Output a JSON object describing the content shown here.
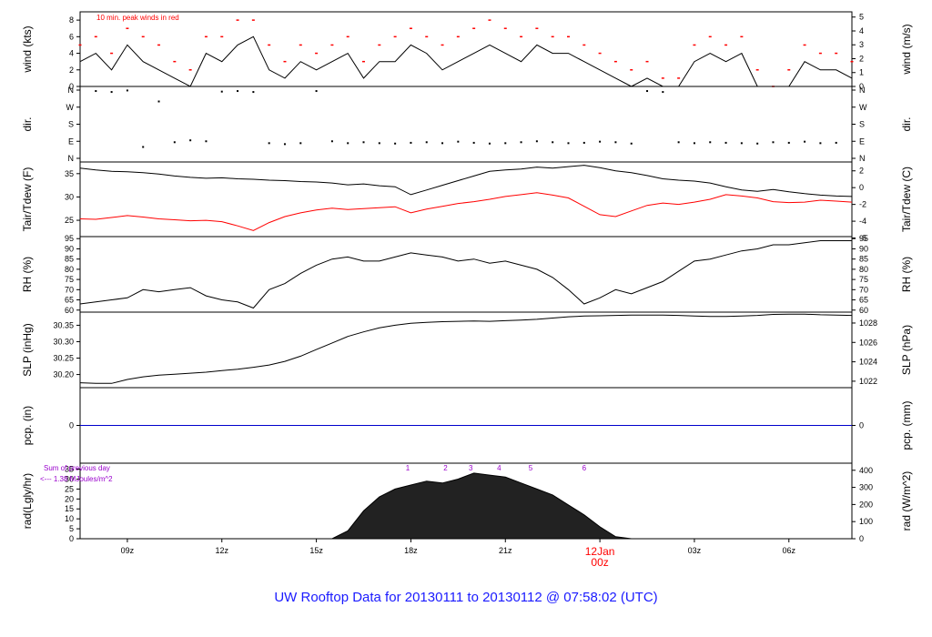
{
  "footer": {
    "title": "UW Rooftop Data for 20130111  to  20130112 @ 07:58:02  (UTC)"
  },
  "colors": {
    "axis": "#000000",
    "wind": "#000000",
    "peak": "#ff0000",
    "tair": "#000000",
    "tdew": "#ff0000",
    "precip": "#0000cc",
    "annotation": "#9900cc",
    "date_label": "#ff0000",
    "footer": "#1a1aff"
  },
  "chart_data": [
    {
      "type": "line",
      "id": "wind",
      "ylabel": "wind (kts)",
      "ylabel_right": "wind (m/s)",
      "ylim": [
        0,
        9
      ],
      "yticks": [
        0,
        2,
        4,
        6,
        8
      ],
      "ylim_right": [
        0,
        5
      ],
      "yticks_right": [
        0,
        1,
        2,
        3,
        4,
        5
      ],
      "annotation": "10 min. peak winds in red",
      "series": [
        {
          "name": "",
          "hours": [
            7.5,
            8,
            8.5,
            9,
            9.5,
            10,
            10.5,
            11,
            11.5,
            12,
            12.5,
            13,
            13.5,
            14,
            14.5,
            15,
            15.5,
            16,
            16.5,
            17,
            17.5,
            18,
            18.5,
            19,
            19.5,
            20,
            20.5,
            21,
            21.5,
            22,
            22.5,
            23,
            23.5,
            24,
            24.5,
            25,
            25.5,
            26,
            26.5,
            27,
            27.5,
            28,
            28.5,
            29,
            29.5,
            30,
            30.5,
            31,
            31.5,
            32
          ],
          "values": [
            3,
            4,
            2,
            5,
            3,
            2,
            1,
            0,
            4,
            3,
            5,
            6,
            2,
            1,
            3,
            2,
            3,
            4,
            1,
            3,
            3,
            5,
            4,
            2,
            3,
            4,
            5,
            4,
            3,
            5,
            4,
            4,
            3,
            2,
            1,
            0,
            1,
            0,
            0,
            3,
            4,
            3,
            4,
            0,
            0,
            0,
            3,
            2,
            2,
            1
          ]
        },
        {
          "name": "",
          "hours": [
            7.5,
            8,
            8.5,
            9,
            9.5,
            10,
            10.5,
            11,
            11.5,
            12,
            12.5,
            13,
            13.5,
            14,
            14.5,
            15,
            15.5,
            16,
            16.5,
            17,
            17.5,
            18,
            18.5,
            19,
            19.5,
            20,
            20.5,
            21,
            21.5,
            22,
            22.5,
            23,
            23.5,
            24,
            24.5,
            25,
            25.5,
            26,
            26.5,
            27,
            27.5,
            28,
            28.5,
            29,
            29.5,
            30,
            30.5,
            31,
            31.5,
            32
          ],
          "values": [
            5,
            6,
            4,
            7,
            6,
            5,
            3,
            2,
            6,
            6,
            8,
            8,
            5,
            3,
            5,
            4,
            5,
            6,
            3,
            5,
            6,
            7,
            6,
            5,
            6,
            7,
            8,
            7,
            6,
            7,
            6,
            6,
            5,
            4,
            3,
            2,
            3,
            1,
            1,
            5,
            6,
            5,
            6,
            2,
            0,
            2,
            5,
            4,
            4,
            3
          ]
        }
      ]
    },
    {
      "type": "scatter",
      "id": "dir",
      "ylabel": "dir.",
      "ylabel_right": "dir.",
      "yticks": [
        "N",
        "E",
        "S",
        "W",
        "N"
      ],
      "yticks_right": [
        "N",
        "E",
        "S",
        "W",
        "N"
      ],
      "x": [
        8,
        8.5,
        9,
        9.5,
        10,
        10.5,
        11,
        11.5,
        12,
        12.5,
        13,
        13.5,
        14,
        14.5,
        15,
        15.5,
        16,
        16.5,
        17,
        17.5,
        18,
        18.5,
        19,
        19.5,
        20,
        20.5,
        21,
        21.5,
        22,
        22.5,
        23,
        23.5,
        24,
        24.5,
        25,
        25.5,
        26,
        26.5,
        27,
        27.5,
        28,
        28.5,
        29,
        29.5,
        30,
        30.5,
        31,
        31.5
      ],
      "values": [
        355,
        350,
        358,
        60,
        300,
        85,
        95,
        90,
        352,
        355,
        350,
        80,
        75,
        80,
        355,
        90,
        80,
        85,
        80,
        78,
        82,
        85,
        80,
        88,
        82,
        78,
        80,
        85,
        90,
        85,
        80,
        82,
        88,
        85,
        78,
        355,
        350,
        85,
        80,
        85,
        82,
        80,
        78,
        85,
        82,
        88,
        80,
        82
      ]
    },
    {
      "type": "line",
      "id": "temp",
      "ylabel": "Tair/Tdew (F)",
      "ylabel_right": "Tair/Tdew (C)",
      "ylim": [
        21.5,
        37.5
      ],
      "yticks": [
        25,
        30,
        35
      ],
      "yticks_right": [
        -6,
        -4,
        -2,
        0,
        2
      ],
      "series": [
        {
          "name": "",
          "hours": [
            7.5,
            8,
            8.5,
            9,
            9.5,
            10,
            10.5,
            11,
            11.5,
            12,
            12.5,
            13,
            13.5,
            14,
            14.5,
            15,
            15.5,
            16,
            16.5,
            17,
            17.5,
            18,
            18.5,
            19,
            19.5,
            20,
            20.5,
            21,
            21.5,
            22,
            22.5,
            23,
            23.5,
            24,
            24.5,
            25,
            25.5,
            26,
            26.5,
            27,
            27.5,
            28,
            28.5,
            29,
            29.5,
            30,
            30.5,
            31,
            31.5,
            32
          ],
          "values": [
            36.2,
            35.8,
            35.5,
            35.4,
            35.2,
            34.9,
            34.5,
            34.2,
            34.0,
            34.1,
            33.9,
            33.8,
            33.6,
            33.5,
            33.3,
            33.2,
            33.0,
            32.6,
            32.8,
            32.4,
            32.2,
            30.5,
            31.5,
            32.5,
            33.5,
            34.5,
            35.5,
            35.8,
            36.0,
            36.4,
            36.2,
            36.5,
            36.8,
            36.3,
            35.6,
            35.2,
            34.6,
            33.9,
            33.6,
            33.4,
            33.0,
            32.2,
            31.5,
            31.2,
            31.6,
            31.1,
            30.7,
            30.4,
            30.2,
            30.1
          ]
        },
        {
          "name": "",
          "hours": [
            7.5,
            8,
            8.5,
            9,
            9.5,
            10,
            10.5,
            11,
            11.5,
            12,
            12.5,
            13,
            13.5,
            14,
            14.5,
            15,
            15.5,
            16,
            16.5,
            17,
            17.5,
            18,
            18.5,
            19,
            19.5,
            20,
            20.5,
            21,
            21.5,
            22,
            22.5,
            23,
            23.5,
            24,
            24.5,
            25,
            25.5,
            26,
            26.5,
            27,
            27.5,
            28,
            28.5,
            29,
            29.5,
            30,
            30.5,
            31,
            31.5,
            32
          ],
          "values": [
            25.3,
            25.2,
            25.6,
            26.0,
            25.7,
            25.3,
            25.1,
            24.9,
            25.0,
            24.7,
            23.8,
            22.8,
            24.5,
            25.8,
            26.6,
            27.2,
            27.6,
            27.3,
            27.5,
            27.7,
            27.9,
            26.6,
            27.4,
            28.0,
            28.6,
            29.0,
            29.5,
            30.1,
            30.5,
            30.9,
            30.4,
            29.8,
            28.0,
            26.2,
            25.8,
            27.0,
            28.2,
            28.7,
            28.4,
            28.9,
            29.5,
            30.5,
            30.2,
            29.8,
            29.0,
            28.8,
            28.9,
            29.3,
            29.1,
            28.9
          ]
        }
      ]
    },
    {
      "type": "line",
      "id": "rh",
      "ylabel": "RH (%)",
      "ylabel_right": "RH (%)",
      "ylim": [
        59,
        96
      ],
      "yticks": [
        60,
        65,
        70,
        75,
        80,
        85,
        90,
        95
      ],
      "yticks_right": [
        60,
        65,
        70,
        75,
        80,
        85,
        90,
        95
      ],
      "hours": [
        7.5,
        8,
        8.5,
        9,
        9.5,
        10,
        10.5,
        11,
        11.5,
        12,
        12.5,
        13,
        13.5,
        14,
        14.5,
        15,
        15.5,
        16,
        16.5,
        17,
        17.5,
        18,
        18.5,
        19,
        19.5,
        20,
        20.5,
        21,
        21.5,
        22,
        22.5,
        23,
        23.5,
        24,
        24.5,
        25,
        25.5,
        26,
        26.5,
        27,
        27.5,
        28,
        28.5,
        29,
        29.5,
        30,
        30.5,
        31,
        31.5,
        32
      ],
      "values": [
        63,
        64,
        65,
        66,
        70,
        69,
        70,
        71,
        67,
        65,
        64,
        61,
        70,
        73,
        78,
        82,
        85,
        86,
        84,
        84,
        86,
        88,
        87,
        86,
        84,
        85,
        83,
        84,
        82,
        80,
        76,
        70,
        63,
        66,
        70,
        68,
        71,
        74,
        79,
        84,
        85,
        87,
        89,
        90,
        92,
        92,
        93,
        94,
        94,
        94
      ]
    },
    {
      "type": "line",
      "id": "slp",
      "ylabel": "SLP (inHg)",
      "ylabel_right": "SLP (hPa)",
      "ylim": [
        30.16,
        30.39
      ],
      "yticks": [
        30.2,
        30.25,
        30.3,
        30.35
      ],
      "yticks_right": [
        1022,
        1024,
        1026,
        1028
      ],
      "hours": [
        7.5,
        8,
        8.5,
        9,
        9.5,
        10,
        10.5,
        11,
        11.5,
        12,
        12.5,
        13,
        13.5,
        14,
        14.5,
        15,
        15.5,
        16,
        16.5,
        17,
        17.5,
        18,
        18.5,
        19,
        19.5,
        20,
        20.5,
        21,
        21.5,
        22,
        22.5,
        23,
        23.5,
        24,
        24.5,
        25,
        25.5,
        26,
        26.5,
        27,
        27.5,
        28,
        28.5,
        29,
        29.5,
        30,
        30.5,
        31,
        31.5,
        32
      ],
      "values": [
        30.175,
        30.173,
        30.173,
        30.185,
        30.193,
        30.198,
        30.201,
        30.204,
        30.207,
        30.212,
        30.216,
        30.222,
        30.229,
        30.24,
        30.256,
        30.276,
        30.296,
        30.316,
        30.33,
        30.342,
        30.35,
        30.356,
        30.359,
        30.361,
        30.362,
        30.363,
        30.362,
        30.364,
        30.366,
        30.368,
        30.372,
        30.376,
        30.378,
        30.379,
        30.38,
        30.381,
        30.381,
        30.381,
        30.38,
        30.378,
        30.377,
        30.377,
        30.378,
        30.38,
        30.383,
        30.384,
        30.384,
        30.382,
        30.381,
        30.38
      ]
    },
    {
      "type": "line",
      "id": "pcp",
      "ylabel": "pcp. (in)",
      "ylabel_right": "pcp. (mm)",
      "ylim": [
        -1,
        1
      ],
      "yticks": [
        0
      ],
      "yticks_right": [
        0
      ],
      "hours": [
        7.5,
        32
      ],
      "values": [
        0,
        0
      ]
    },
    {
      "type": "area",
      "id": "rad",
      "ylabel": "rad(Lgly/hr)",
      "ylabel_right": "rad (W/m^2)",
      "ylim": [
        0,
        38
      ],
      "yticks": [
        0,
        5,
        10,
        15,
        20,
        25,
        30,
        35
      ],
      "yticks_right": [
        0,
        100,
        200,
        300,
        400
      ],
      "annotation_lines": [
        "Sum of previous day",
        "<--- 1.38 MJoules/m^2"
      ],
      "markers": [
        "1",
        "2",
        "3",
        "4",
        "5",
        "6"
      ],
      "marker_hours": [
        17.9,
        19.1,
        19.9,
        20.8,
        21.8,
        23.5
      ],
      "hours": [
        15.5,
        16,
        16.5,
        17,
        17.5,
        18,
        18.5,
        19,
        19.5,
        20,
        20.5,
        21,
        21.5,
        22,
        22.5,
        23,
        23.5,
        24,
        24.5,
        25
      ],
      "values": [
        0,
        4,
        14,
        21,
        25,
        27,
        29,
        28,
        30,
        33,
        32,
        31,
        28,
        25,
        22,
        17,
        12,
        6,
        1,
        0
      ],
      "xtick_labels": [
        "09z",
        "12z",
        "15z",
        "18z",
        "21z",
        "00z",
        "03z",
        "06z"
      ],
      "xtick_hours": [
        9,
        12,
        15,
        18,
        21,
        24,
        27,
        30
      ],
      "date_label": "12Jan"
    }
  ]
}
